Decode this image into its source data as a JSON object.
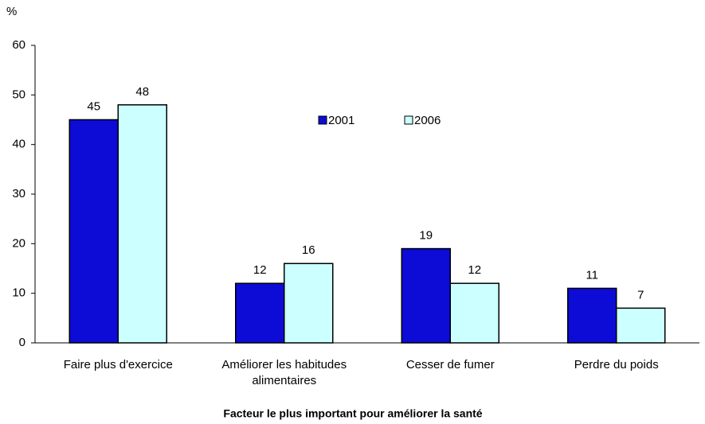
{
  "chart_data": {
    "type": "bar",
    "y_label": "%",
    "x_label": "Facteur le plus important pour améliorer la santé",
    "categories": [
      "Faire plus d'exercice",
      "Améliorer les habitudes alimentaires",
      "Cesser de fumer",
      "Perdre du poids"
    ],
    "series": [
      {
        "name": "2001",
        "color": "#0c0cd6",
        "values": [
          45,
          12,
          19,
          11
        ]
      },
      {
        "name": "2006",
        "color": "#ccffff",
        "values": [
          48,
          16,
          12,
          7
        ]
      }
    ],
    "ylim": [
      0,
      60
    ],
    "yticks": [
      0,
      10,
      20,
      30,
      40,
      50,
      60
    ],
    "grid": false
  }
}
